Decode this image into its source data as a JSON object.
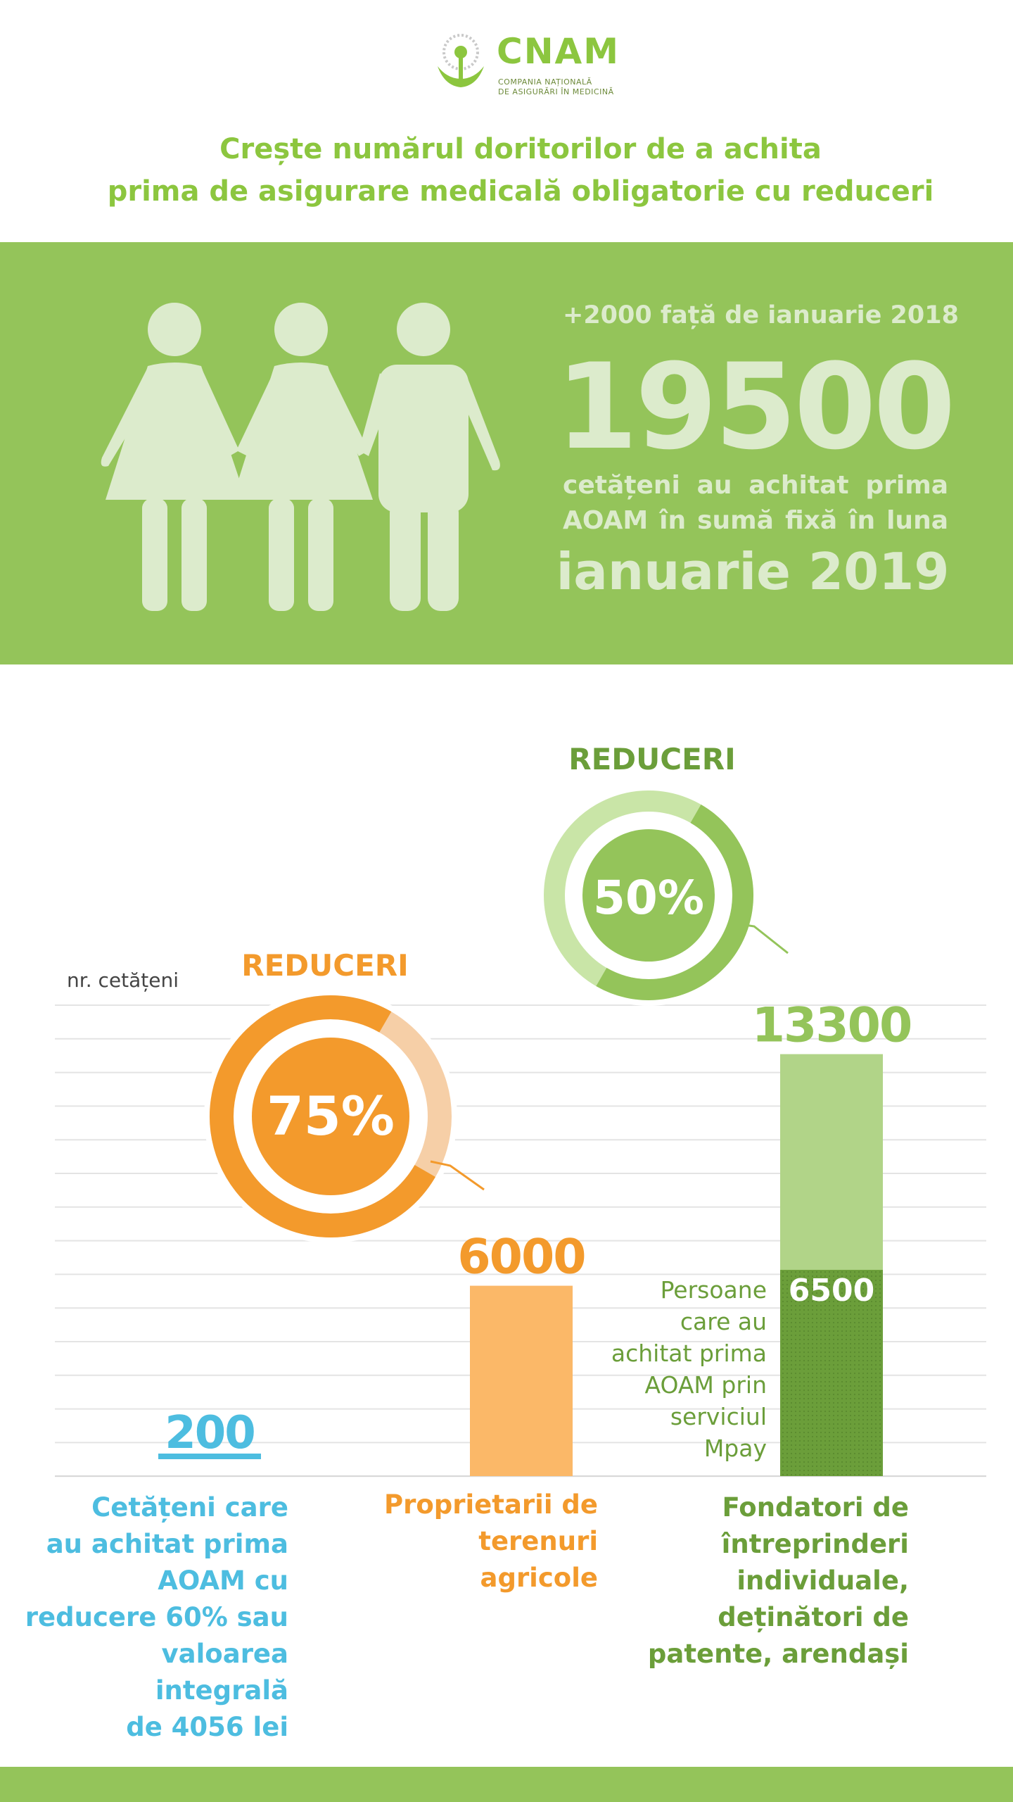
{
  "header": {
    "brand": "CNAM",
    "subtitle_line1": "COMPANIA NAȚIONALĂ",
    "subtitle_line2": "DE ASIGURĂRI ÎN MEDICINĂ",
    "title_line1": "Crește numărul doritorilor de a achita",
    "title_line2": "prima de asigurare medicală obligatorie cu reduceri"
  },
  "band": {
    "delta": "+2000 față de ianuarie 2018",
    "number": "19500",
    "caption_line1": "cetățeni au achitat prima",
    "caption_line2": "AOAM în sumă fixă în luna",
    "month": "ianuarie 2019"
  },
  "colors": {
    "green": "#94c45a",
    "light_green": "#b1d488",
    "dark_green": "#6b9e3a",
    "orange": "#f39a2c",
    "light_orange": "#fbb868",
    "blue": "#4dbde0"
  },
  "chart_data": {
    "type": "bar",
    "ylabel": "nr. cetățeni",
    "categories": [
      "Cetățeni care au achitat prima AOAM cu reducere 60% sau valoarea integrală de 4056 lei",
      "Proprietarii de terenuri agricole",
      "Fondatori de întreprinderi individuale, deținători de patente, arendași"
    ],
    "values": [
      200,
      6000,
      13300
    ],
    "value_labels": [
      "200",
      "6000",
      "13300"
    ],
    "segment": {
      "category_index": 2,
      "value": 6500,
      "label": "6500",
      "note": "Persoane care au achitat prima AOAM prin serviciul Mpay"
    },
    "ylim": [
      0,
      14000
    ],
    "grid": true,
    "annotations": [
      {
        "title": "REDUCERI",
        "percent": 75,
        "label": "75%",
        "category_index": 1
      },
      {
        "title": "REDUCERI",
        "percent": 50,
        "label": "50%",
        "category_index": 2
      }
    ]
  },
  "labels": {
    "cat1_lines": [
      "Cetățeni care",
      "au achitat prima",
      "AOAM  cu",
      "reducere 60% sau",
      "valoarea integrală",
      "de 4056 lei"
    ],
    "cat2_lines": [
      "Proprietarii de",
      "terenuri",
      "agricole"
    ],
    "cat3_lines": [
      "Fondatori de",
      "întreprinderi",
      "individuale,",
      "deținători de",
      "patente, arendași"
    ],
    "note_lines": [
      "Persoane",
      "care au",
      "achitat prima",
      "AOAM prin",
      "serviciul",
      "Mpay"
    ]
  }
}
